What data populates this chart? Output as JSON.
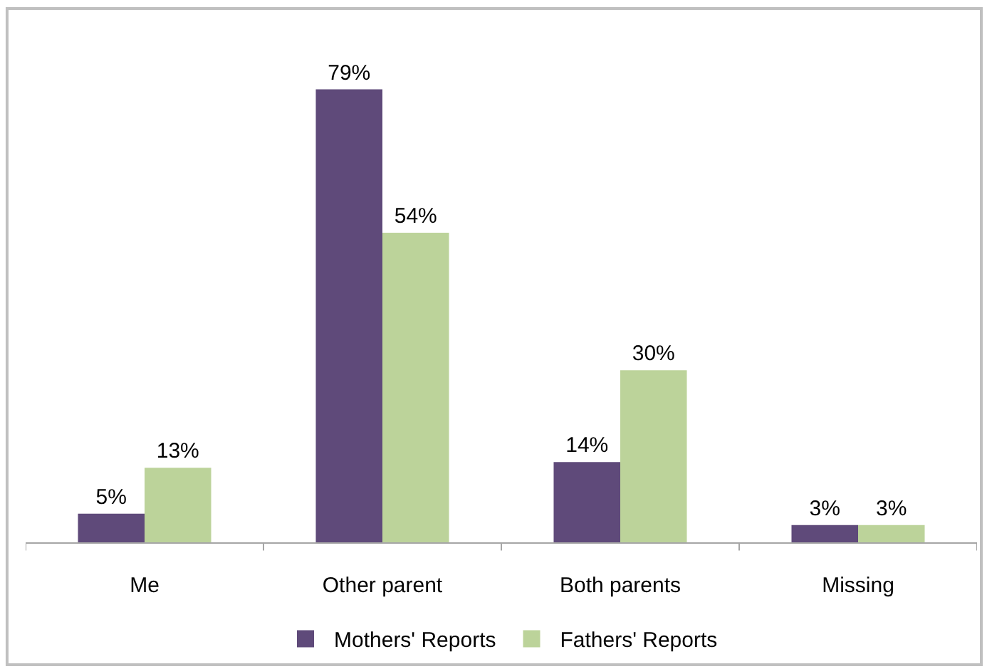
{
  "chart_data": {
    "type": "bar",
    "categories": [
      "Me",
      "Other parent",
      "Both parents",
      "Missing"
    ],
    "series": [
      {
        "name": "Mothers' Reports",
        "color": "#5f4a7a",
        "values": [
          5,
          79,
          14,
          3
        ],
        "value_labels": [
          "5%",
          "79%",
          "14%",
          "3%"
        ]
      },
      {
        "name": "Fathers' Reports",
        "color": "#bcd39a",
        "values": [
          13,
          54,
          30,
          3
        ],
        "value_labels": [
          "13%",
          "54%",
          "30%",
          "3%"
        ]
      }
    ],
    "tick_labels": "x",
    "legend": "bottom"
  }
}
